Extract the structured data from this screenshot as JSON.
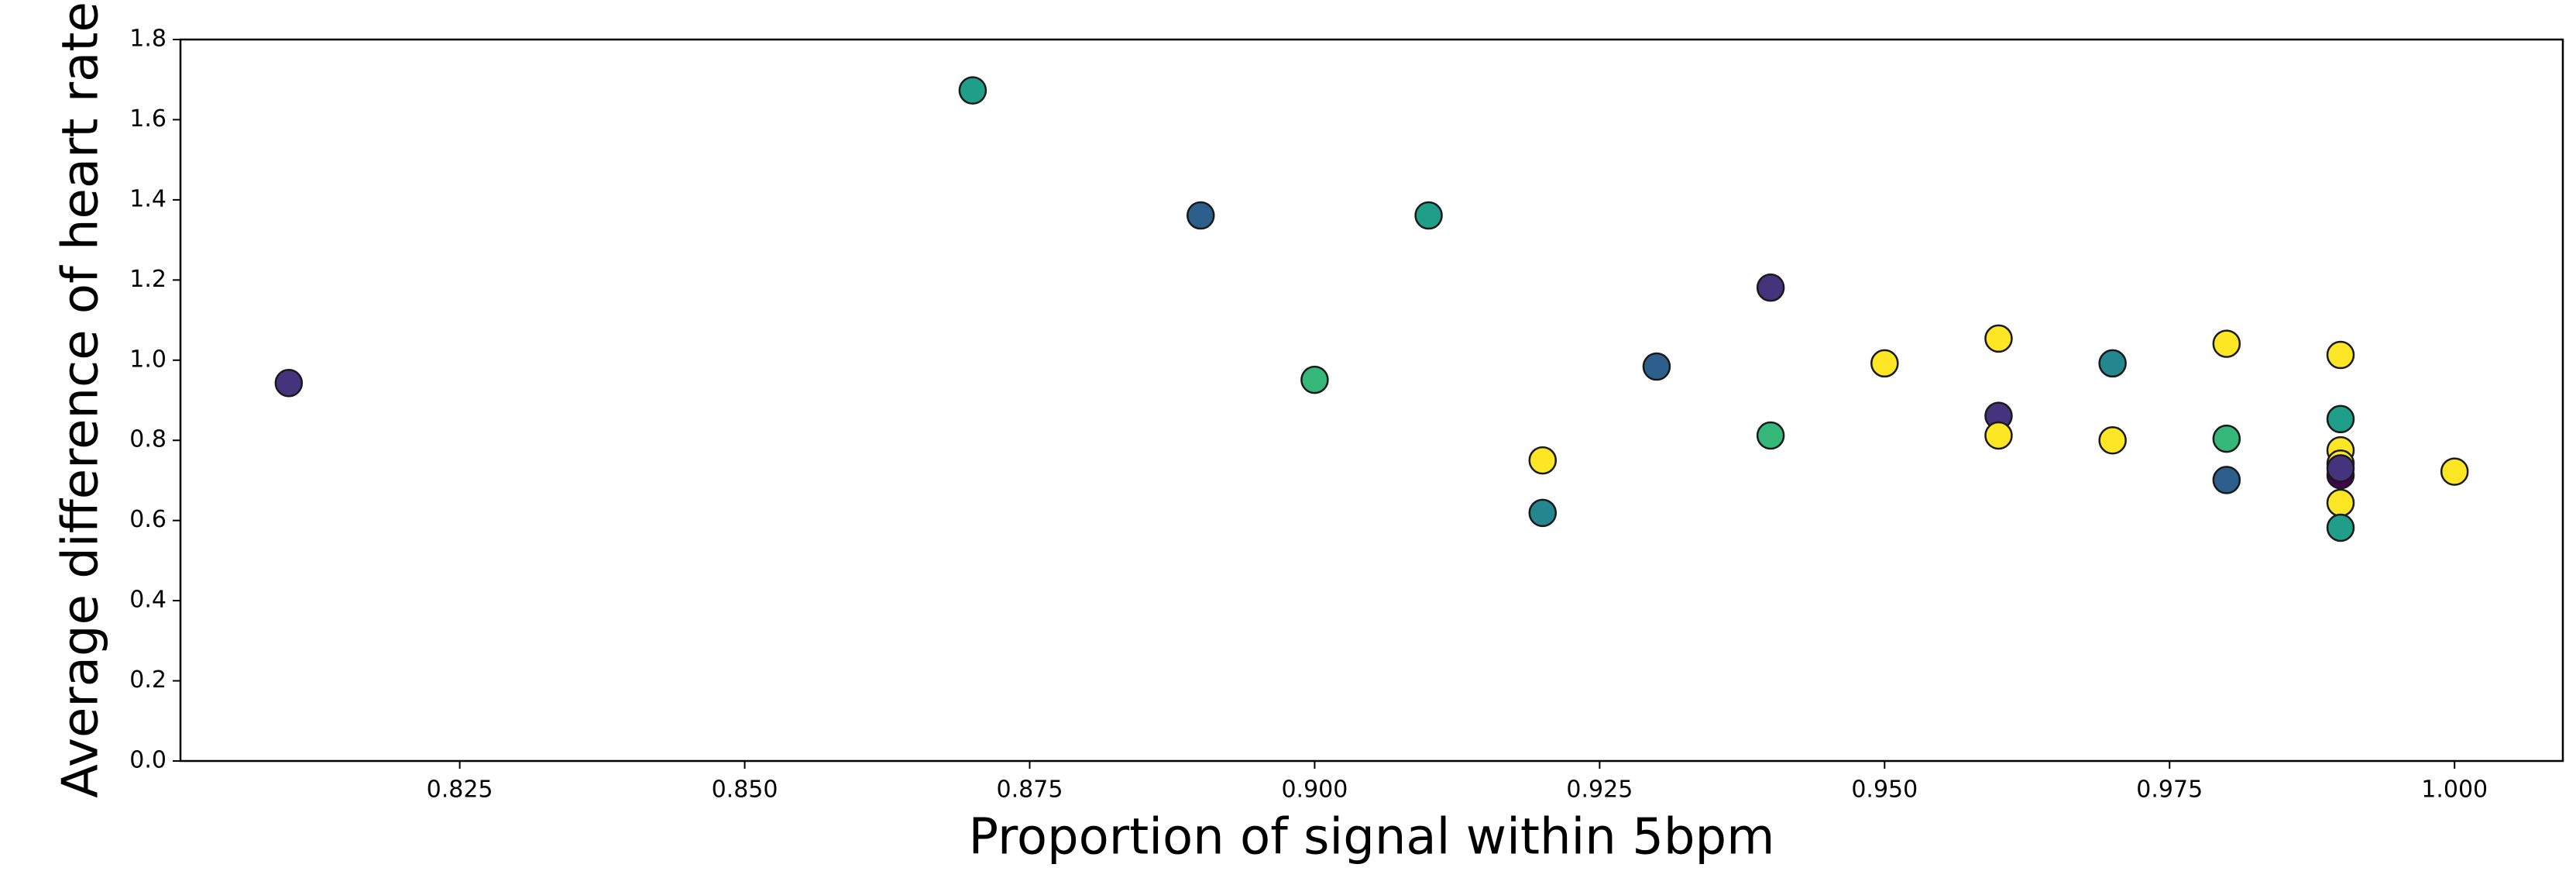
{
  "chart_data": {
    "type": "scatter",
    "x_label": "Proportion of signal within 5bpm",
    "y_label": "Average difference of heart rate",
    "x": [
      0.81,
      0.87,
      0.89,
      0.91,
      0.94,
      0.9,
      0.92,
      0.92,
      0.93,
      0.94,
      0.95,
      0.96,
      0.96,
      0.96,
      0.97,
      0.97,
      0.98,
      0.98,
      0.98,
      0.99,
      0.99,
      0.99,
      0.99,
      0.99,
      0.99,
      0.99,
      0.99,
      1.0
    ],
    "values": [
      0.943,
      1.673,
      1.361,
      1.361,
      1.181,
      0.951,
      0.75,
      0.619,
      0.984,
      0.812,
      0.992,
      1.054,
      0.861,
      0.812,
      0.992,
      0.8,
      1.041,
      0.804,
      0.701,
      1.013,
      0.853,
      0.775,
      0.742,
      0.713,
      0.73,
      0.644,
      0.582,
      0.722
    ],
    "colors": [
      "#46337e",
      "#1f9e89",
      "#2c5f8c",
      "#1f9e89",
      "#46337e",
      "#35b779",
      "#fde725",
      "#24868e",
      "#2c5f8c",
      "#35b779",
      "#fde725",
      "#fde725",
      "#46337e",
      "#fde725",
      "#24868e",
      "#fde725",
      "#fde725",
      "#35b779",
      "#2c5f8c",
      "#fde725",
      "#1f9e89",
      "#fde725",
      "#fde725",
      "#440154",
      "#46337e",
      "#fde725",
      "#1f9e89",
      "#fde725"
    ],
    "xlim": [
      0.8005,
      1.0095
    ],
    "ylim": [
      0,
      1.8
    ],
    "xticks": [
      0.825,
      {
        "value": 0.85,
        "label": "0.850"
      },
      0.875,
      {
        "value": 0.9,
        "label": "0.900"
      },
      0.925,
      {
        "value": 0.95,
        "label": "0.950"
      },
      0.975,
      {
        "value": 1.0,
        "label": "1.000"
      }
    ],
    "yticks": [
      {
        "value": 0,
        "label": "0.0"
      },
      0.2,
      0.4,
      0.6,
      0.8,
      {
        "value": 1.0,
        "label": "1.0"
      },
      1.2,
      1.4,
      1.6,
      1.8
    ]
  }
}
